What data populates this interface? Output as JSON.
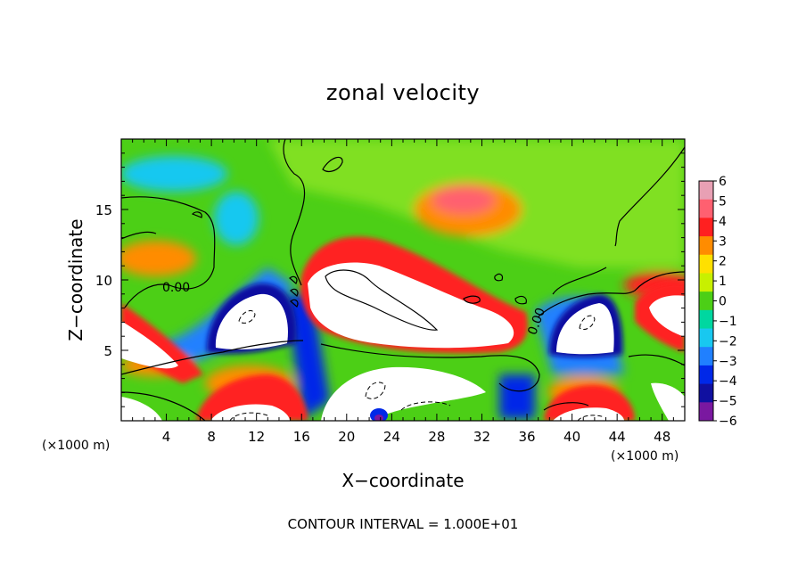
{
  "chart_data": {
    "type": "heatmap",
    "title": "zonal velocity",
    "xlabel": "X−coordinate",
    "ylabel": "Z−coordinate",
    "x_unit": "(×1000 m)",
    "z_unit": "(×1000 m)",
    "xlim": [
      0,
      50
    ],
    "ylim": [
      0,
      20
    ],
    "x_ticks": [
      4,
      8,
      12,
      16,
      20,
      24,
      28,
      32,
      36,
      40,
      44,
      48
    ],
    "y_ticks": [
      5,
      10,
      15
    ],
    "colorbar": {
      "ticks": [
        6,
        5,
        4,
        3,
        2,
        1,
        0,
        -1,
        -2,
        -3,
        -4,
        -5,
        -6
      ],
      "tick_labels": [
        "6",
        "5",
        "4",
        "3",
        "2",
        "1",
        "0",
        "−1",
        "−2",
        "−3",
        "−4",
        "−5",
        "−6"
      ],
      "colors": [
        "#e8a0b4",
        "#ff6070",
        "#ff2020",
        "#ff8c00",
        "#ffe000",
        "#c8f000",
        "#4ccf16",
        "#00d7a0",
        "#18c8f0",
        "#2080ff",
        "#0028e8",
        "#1010a0",
        "#7a18a0"
      ],
      "over_color": "#ffffff",
      "under_color": "#ffffff"
    },
    "contour_label": "0.00",
    "contour_label_2": "0.00",
    "footer": "CONTOUR INTERVAL = 1.000E+01",
    "grid": false
  }
}
